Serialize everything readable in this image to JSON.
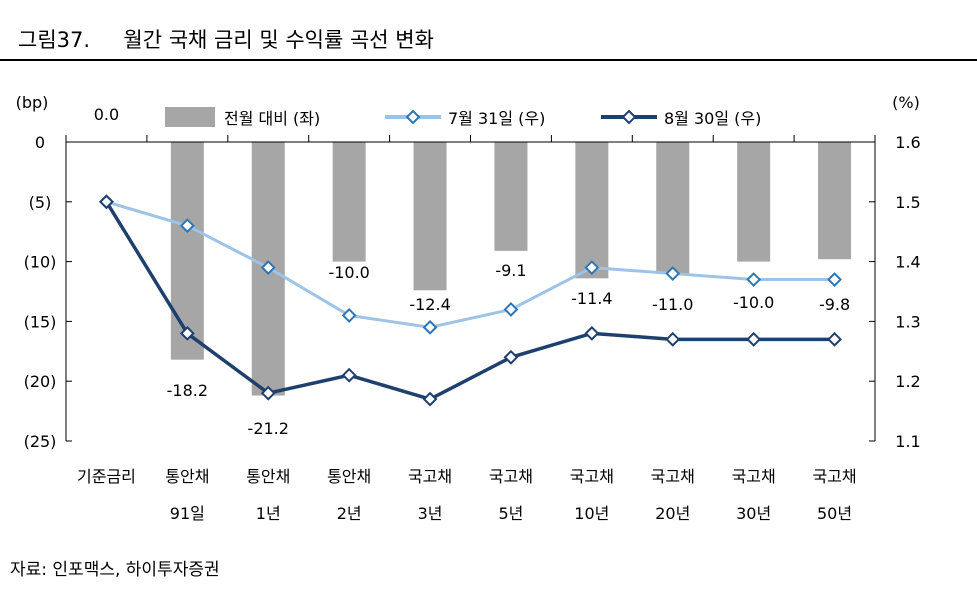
{
  "title": "그림37.     월간 국채 금리 및 수익률 곡선 변화",
  "source": "자료: 인포맥스, 하이투자증권",
  "chart_data": {
    "type": "bar+line",
    "left_axis_unit": "(bp)",
    "right_axis_unit": "(%)",
    "ylim_left": [
      -25,
      0
    ],
    "ylim_right": [
      1.1,
      1.6
    ],
    "left_ticks": [
      "0",
      "(5)",
      "(10)",
      "(15)",
      "(20)",
      "(25)"
    ],
    "right_ticks": [
      "1.6",
      "1.5",
      "1.4",
      "1.3",
      "1.2",
      "1.1"
    ],
    "categories": [
      [
        "기준금리",
        ""
      ],
      [
        "통안채",
        "91일"
      ],
      [
        "통안채",
        "1년"
      ],
      [
        "통안채",
        "2년"
      ],
      [
        "국고채",
        "3년"
      ],
      [
        "국고채",
        "5년"
      ],
      [
        "국고채",
        "10년"
      ],
      [
        "국고채",
        "20년"
      ],
      [
        "국고채",
        "30년"
      ],
      [
        "국고채",
        "50년"
      ]
    ],
    "legend_position": "top",
    "series": [
      {
        "name": "전월 대비 (좌)",
        "type": "bar",
        "axis": "left",
        "color": "#a6a6a6",
        "values": [
          0.0,
          -18.2,
          -21.2,
          -10.0,
          -12.4,
          -9.1,
          -11.4,
          -11.0,
          -10.0,
          -9.8
        ],
        "labels": [
          "0.0",
          "-18.2",
          "-21.2",
          "-10.0",
          "-12.4",
          "-9.1",
          "-11.4",
          "-11.0",
          "-10.0",
          "-9.8"
        ]
      },
      {
        "name": "7월 31일 (우)",
        "type": "line",
        "axis": "right",
        "color": "#9dc3e6",
        "values": [
          1.5,
          1.46,
          1.39,
          1.31,
          1.29,
          1.32,
          1.39,
          1.38,
          1.37,
          1.37
        ]
      },
      {
        "name": "8월 30일 (우)",
        "type": "line",
        "axis": "right",
        "color": "#1f3f6e",
        "values": [
          1.5,
          1.28,
          1.18,
          1.21,
          1.17,
          1.24,
          1.28,
          1.27,
          1.27,
          1.27
        ]
      }
    ]
  }
}
